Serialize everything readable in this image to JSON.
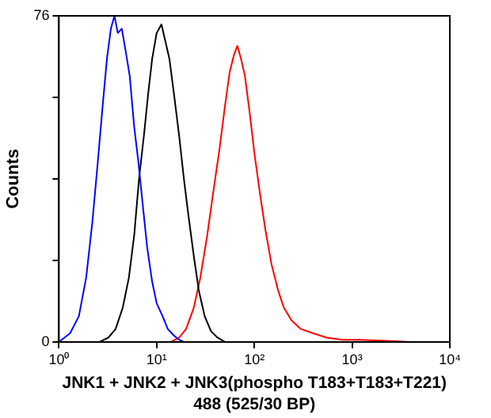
{
  "chart_data": {
    "type": "line",
    "xlabel": "JNK1 + JNK2 + JNK3(phospho T183+T183+T221)\n488 (525/30 BP)",
    "ylabel": "Counts",
    "log": "x",
    "grid": false,
    "legend": false,
    "marker": "none",
    "line_style": "solid",
    "xlim": [
      1,
      10000
    ],
    "xticks": [
      {
        "value": 1,
        "label": "10⁰"
      },
      {
        "value": 10,
        "label": "10¹"
      },
      {
        "value": 100,
        "label": "10²"
      },
      {
        "value": 1000,
        "label": "10³"
      },
      {
        "value": 10000,
        "label": "10⁴"
      }
    ],
    "ylim": [
      0,
      76
    ],
    "yticks": [
      0,
      {
        "value": 19,
        "label": null
      },
      {
        "value": 38,
        "label": null
      },
      {
        "value": 57,
        "label": null
      },
      76
    ],
    "series": [
      {
        "color": "#0000ff",
        "x": [
          1,
          1.3,
          1.6,
          1.9,
          2.2,
          2.5,
          2.8,
          3.1,
          3.4,
          3.7,
          4.0,
          4.4,
          4.8,
          5.3,
          5.9,
          6.5,
          7.2,
          8,
          9,
          10,
          11.5,
          13,
          15,
          17,
          19
        ],
        "values": [
          0,
          2,
          6,
          15,
          28,
          42,
          55,
          66,
          73,
          76,
          72,
          73,
          68,
          62,
          50,
          42,
          32,
          22,
          14,
          9,
          6,
          3,
          1.5,
          0.5,
          0
        ]
      },
      {
        "color": "#000000",
        "x": [
          2.6,
          3.2,
          3.8,
          4.5,
          5.2,
          5.9,
          6.6,
          7.4,
          8.2,
          9,
          10,
          11.2,
          12.3,
          13.5,
          15,
          17,
          19,
          21,
          24,
          27,
          31,
          36,
          42,
          50
        ],
        "values": [
          0,
          1,
          3,
          8,
          15,
          25,
          38,
          48,
          58,
          66,
          72,
          74,
          70,
          66,
          58,
          48,
          38,
          30,
          20,
          12,
          6,
          2.5,
          1,
          0
        ]
      },
      {
        "color": "#ff0000",
        "x": [
          14,
          17,
          20,
          24,
          28,
          33,
          38,
          44,
          50,
          56,
          62,
          67,
          73,
          80,
          90,
          100,
          115,
          130,
          150,
          175,
          200,
          240,
          300,
          400,
          550,
          800,
          1200,
          2000,
          4000
        ],
        "values": [
          0,
          1,
          3,
          8,
          15,
          25,
          35,
          45,
          55,
          63,
          67,
          69,
          66,
          62,
          53,
          44,
          34,
          26,
          18,
          12,
          8,
          5,
          3,
          2,
          1,
          0.5,
          0.5,
          0.3,
          0
        ]
      }
    ]
  }
}
